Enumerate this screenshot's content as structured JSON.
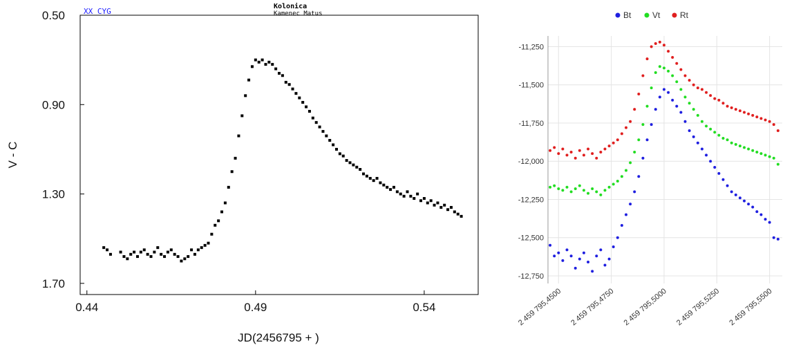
{
  "chart_data": [
    {
      "type": "scatter",
      "title": "Kolonica",
      "subtitle": "Kamenec Matus",
      "star_label": "XX CYG",
      "xlabel": "JD(2456795 + )",
      "ylabel": "V - C",
      "xlim": [
        0.438,
        0.556
      ],
      "ylim": [
        0.5,
        1.75
      ],
      "y_inverted": true,
      "grid": false,
      "x_ticks": [
        0.44,
        0.49,
        0.54
      ],
      "x_tick_labels": [
        "0.44",
        "0.49",
        "0.54"
      ],
      "y_ticks": [
        0.5,
        0.9,
        1.3,
        1.7
      ],
      "y_tick_labels": [
        "0.50",
        "0.90",
        "1.30",
        "1.70"
      ],
      "marker_color": "#000000",
      "series": [
        {
          "x": [
            0.445,
            0.446,
            0.447,
            0.45,
            0.451,
            0.452,
            0.453,
            0.454,
            0.455,
            0.456,
            0.457,
            0.458,
            0.459,
            0.46,
            0.461,
            0.462,
            0.463,
            0.464,
            0.465,
            0.466,
            0.467,
            0.468,
            0.469,
            0.47,
            0.471,
            0.472,
            0.473,
            0.474,
            0.475,
            0.476,
            0.477,
            0.478,
            0.479,
            0.48,
            0.481,
            0.482,
            0.483,
            0.484,
            0.485,
            0.486,
            0.487,
            0.488,
            0.489,
            0.49,
            0.491,
            0.492,
            0.493,
            0.494,
            0.495,
            0.496,
            0.497,
            0.498,
            0.499,
            0.5,
            0.501,
            0.502,
            0.503,
            0.504,
            0.505,
            0.506,
            0.507,
            0.508,
            0.509,
            0.51,
            0.511,
            0.512,
            0.513,
            0.514,
            0.515,
            0.516,
            0.517,
            0.518,
            0.519,
            0.52,
            0.521,
            0.522,
            0.523,
            0.524,
            0.525,
            0.526,
            0.527,
            0.528,
            0.529,
            0.53,
            0.531,
            0.532,
            0.533,
            0.534,
            0.535,
            0.536,
            0.537,
            0.538,
            0.539,
            0.54,
            0.541,
            0.542,
            0.543,
            0.544,
            0.545,
            0.546,
            0.547,
            0.548,
            0.549,
            0.55,
            0.551
          ],
          "y": [
            1.54,
            1.55,
            1.57,
            1.56,
            1.58,
            1.59,
            1.57,
            1.56,
            1.58,
            1.56,
            1.55,
            1.57,
            1.58,
            1.56,
            1.54,
            1.57,
            1.58,
            1.56,
            1.55,
            1.57,
            1.58,
            1.6,
            1.59,
            1.58,
            1.55,
            1.57,
            1.55,
            1.54,
            1.53,
            1.52,
            1.48,
            1.44,
            1.42,
            1.38,
            1.34,
            1.27,
            1.2,
            1.14,
            1.04,
            0.95,
            0.86,
            0.79,
            0.73,
            0.7,
            0.71,
            0.7,
            0.72,
            0.71,
            0.72,
            0.74,
            0.76,
            0.77,
            0.8,
            0.81,
            0.83,
            0.85,
            0.87,
            0.89,
            0.91,
            0.93,
            0.96,
            0.98,
            1.0,
            1.02,
            1.04,
            1.06,
            1.08,
            1.1,
            1.12,
            1.13,
            1.15,
            1.16,
            1.17,
            1.18,
            1.19,
            1.21,
            1.22,
            1.23,
            1.24,
            1.23,
            1.25,
            1.26,
            1.27,
            1.28,
            1.27,
            1.29,
            1.3,
            1.31,
            1.29,
            1.31,
            1.32,
            1.3,
            1.33,
            1.32,
            1.34,
            1.33,
            1.35,
            1.34,
            1.36,
            1.35,
            1.37,
            1.36,
            1.38,
            1.39,
            1.4
          ]
        }
      ]
    },
    {
      "type": "scatter",
      "title": "",
      "xlabel": "",
      "ylabel": "",
      "xlim": [
        2459795.445,
        2459795.556
      ],
      "ylim": [
        -12.8,
        -11.18
      ],
      "grid": true,
      "legend_position": "top-center",
      "x_ticks": [
        2459795.45,
        2459795.475,
        2459795.5,
        2459795.525,
        2459795.55
      ],
      "x_tick_labels": [
        "2 459 795,4500",
        "2 459 795,4750",
        "2 459 795,5000",
        "2 459 795,5250",
        "2 459 795,5500"
      ],
      "y_ticks": [
        -11.25,
        -11.5,
        -11.75,
        -12.0,
        -12.25,
        -12.5,
        -12.75
      ],
      "y_tick_labels": [
        "-11,250",
        "-11,500",
        "-11,750",
        "-12,000",
        "-12,250",
        "-12,500",
        "-12,750"
      ],
      "series": [
        {
          "name": "Bt",
          "color": "#1f1fe0",
          "x": [
            2459795.446,
            2459795.448,
            2459795.45,
            2459795.452,
            2459795.454,
            2459795.456,
            2459795.458,
            2459795.46,
            2459795.462,
            2459795.464,
            2459795.466,
            2459795.468,
            2459795.47,
            2459795.472,
            2459795.474,
            2459795.476,
            2459795.478,
            2459795.48,
            2459795.482,
            2459795.484,
            2459795.486,
            2459795.488,
            2459795.49,
            2459795.492,
            2459795.494,
            2459795.496,
            2459795.498,
            2459795.5,
            2459795.502,
            2459795.504,
            2459795.506,
            2459795.508,
            2459795.51,
            2459795.512,
            2459795.514,
            2459795.516,
            2459795.518,
            2459795.52,
            2459795.522,
            2459795.524,
            2459795.526,
            2459795.528,
            2459795.53,
            2459795.532,
            2459795.534,
            2459795.536,
            2459795.538,
            2459795.54,
            2459795.542,
            2459795.544,
            2459795.546,
            2459795.548,
            2459795.55,
            2459795.552,
            2459795.554
          ],
          "y": [
            -12.55,
            -12.62,
            -12.6,
            -12.65,
            -12.58,
            -12.62,
            -12.7,
            -12.64,
            -12.6,
            -12.66,
            -12.72,
            -12.62,
            -12.58,
            -12.68,
            -12.64,
            -12.56,
            -12.5,
            -12.42,
            -12.35,
            -12.28,
            -12.2,
            -12.1,
            -11.98,
            -11.86,
            -11.76,
            -11.66,
            -11.58,
            -11.53,
            -11.55,
            -11.6,
            -11.64,
            -11.68,
            -11.74,
            -11.8,
            -11.84,
            -11.88,
            -11.92,
            -11.96,
            -12.0,
            -12.04,
            -12.08,
            -12.12,
            -12.16,
            -12.2,
            -12.22,
            -12.24,
            -12.26,
            -12.28,
            -12.3,
            -12.33,
            -12.35,
            -12.38,
            -12.4,
            -12.5,
            -12.51
          ]
        },
        {
          "name": "Vt",
          "color": "#22dd22",
          "x": [
            2459795.446,
            2459795.448,
            2459795.45,
            2459795.452,
            2459795.454,
            2459795.456,
            2459795.458,
            2459795.46,
            2459795.462,
            2459795.464,
            2459795.466,
            2459795.468,
            2459795.47,
            2459795.472,
            2459795.474,
            2459795.476,
            2459795.478,
            2459795.48,
            2459795.482,
            2459795.484,
            2459795.486,
            2459795.488,
            2459795.49,
            2459795.492,
            2459795.494,
            2459795.496,
            2459795.498,
            2459795.5,
            2459795.502,
            2459795.504,
            2459795.506,
            2459795.508,
            2459795.51,
            2459795.512,
            2459795.514,
            2459795.516,
            2459795.518,
            2459795.52,
            2459795.522,
            2459795.524,
            2459795.526,
            2459795.528,
            2459795.53,
            2459795.532,
            2459795.534,
            2459795.536,
            2459795.538,
            2459795.54,
            2459795.542,
            2459795.544,
            2459795.546,
            2459795.548,
            2459795.55,
            2459795.552,
            2459795.554
          ],
          "y": [
            -12.17,
            -12.16,
            -12.18,
            -12.19,
            -12.17,
            -12.2,
            -12.18,
            -12.16,
            -12.19,
            -12.21,
            -12.18,
            -12.2,
            -12.22,
            -12.19,
            -12.17,
            -12.15,
            -12.13,
            -12.1,
            -12.06,
            -12.01,
            -11.94,
            -11.86,
            -11.76,
            -11.64,
            -11.52,
            -11.42,
            -11.38,
            -11.39,
            -11.41,
            -11.44,
            -11.48,
            -11.53,
            -11.58,
            -11.62,
            -11.66,
            -11.7,
            -11.74,
            -11.77,
            -11.79,
            -11.81,
            -11.83,
            -11.85,
            -11.86,
            -11.88,
            -11.89,
            -11.9,
            -11.91,
            -11.92,
            -11.93,
            -11.94,
            -11.95,
            -11.96,
            -11.97,
            -11.98,
            -12.02
          ]
        },
        {
          "name": "Rt",
          "color": "#e01f1f",
          "x": [
            2459795.446,
            2459795.448,
            2459795.45,
            2459795.452,
            2459795.454,
            2459795.456,
            2459795.458,
            2459795.46,
            2459795.462,
            2459795.464,
            2459795.466,
            2459795.468,
            2459795.47,
            2459795.472,
            2459795.474,
            2459795.476,
            2459795.478,
            2459795.48,
            2459795.482,
            2459795.484,
            2459795.486,
            2459795.488,
            2459795.49,
            2459795.492,
            2459795.494,
            2459795.496,
            2459795.498,
            2459795.5,
            2459795.502,
            2459795.504,
            2459795.506,
            2459795.508,
            2459795.51,
            2459795.512,
            2459795.514,
            2459795.516,
            2459795.518,
            2459795.52,
            2459795.522,
            2459795.524,
            2459795.526,
            2459795.528,
            2459795.53,
            2459795.532,
            2459795.534,
            2459795.536,
            2459795.538,
            2459795.54,
            2459795.542,
            2459795.544,
            2459795.546,
            2459795.548,
            2459795.55,
            2459795.552,
            2459795.554
          ],
          "y": [
            -11.93,
            -11.91,
            -11.95,
            -11.92,
            -11.96,
            -11.94,
            -11.98,
            -11.93,
            -11.96,
            -11.92,
            -11.95,
            -11.98,
            -11.94,
            -11.92,
            -11.9,
            -11.88,
            -11.86,
            -11.82,
            -11.78,
            -11.74,
            -11.66,
            -11.56,
            -11.44,
            -11.33,
            -11.25,
            -11.23,
            -11.22,
            -11.24,
            -11.28,
            -11.32,
            -11.36,
            -11.4,
            -11.44,
            -11.47,
            -11.5,
            -11.52,
            -11.53,
            -11.55,
            -11.57,
            -11.59,
            -11.6,
            -11.62,
            -11.64,
            -11.65,
            -11.66,
            -11.67,
            -11.68,
            -11.69,
            -11.7,
            -11.71,
            -11.72,
            -11.73,
            -11.74,
            -11.76,
            -11.8
          ]
        }
      ]
    }
  ]
}
